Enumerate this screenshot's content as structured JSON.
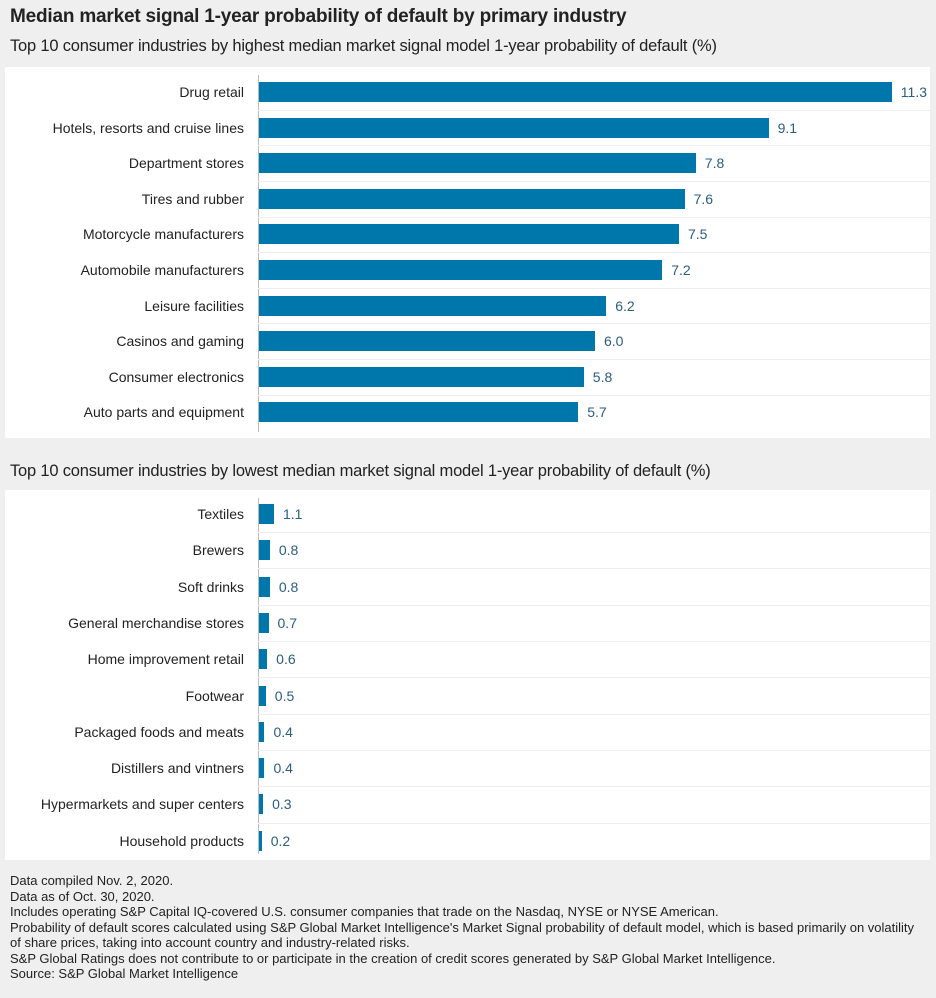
{
  "title": "Median market signal 1-year probability of default by primary industry",
  "chart_data": [
    {
      "type": "bar",
      "orientation": "horizontal",
      "title": "Top 10 consumer industries by highest median market signal model 1-year probability of default (%)",
      "categories": [
        "Drug retail",
        "Hotels, resorts and cruise lines",
        "Department stores",
        "Tires and rubber",
        "Motorcycle manufacturers",
        "Automobile manufacturers",
        "Leisure facilities",
        "Casinos and gaming",
        "Consumer electronics",
        "Auto parts and equipment"
      ],
      "values": [
        11.3,
        9.1,
        7.8,
        7.6,
        7.5,
        7.2,
        6.2,
        6.0,
        5.8,
        5.7
      ],
      "labels": [
        "11.3",
        "9.1",
        "7.8",
        "7.6",
        "7.5",
        "7.2",
        "6.2",
        "6.0",
        "5.8",
        "5.7"
      ],
      "color": "#0077aa"
    },
    {
      "type": "bar",
      "orientation": "horizontal",
      "title": "Top 10 consumer industries by lowest median market signal model 1-year probability of default (%)",
      "categories": [
        "Textiles",
        "Brewers",
        "Soft drinks",
        "General merchandise stores",
        "Home improvement retail",
        "Footwear",
        "Packaged foods and meats",
        "Distillers and vintners",
        "Hypermarkets and super centers",
        "Household products"
      ],
      "values": [
        1.1,
        0.8,
        0.8,
        0.7,
        0.6,
        0.5,
        0.4,
        0.4,
        0.3,
        0.2
      ],
      "labels": [
        "1.1",
        "0.8",
        "0.8",
        "0.7",
        "0.6",
        "0.5",
        "0.4",
        "0.4",
        "0.3",
        "0.2"
      ],
      "color": "#0077aa"
    }
  ],
  "footnotes": [
    "Data compiled Nov. 2, 2020.",
    "Data as of Oct. 30, 2020.",
    "Includes operating S&P Capital IQ-covered U.S. consumer companies that trade on the Nasdaq, NYSE or NYSE American.",
    "Probability of default scores calculated using S&P Global Market Intelligence's Market Signal probability of default model, which is based primarily on volatility of share prices, taking into account country and industry-related risks.",
    "S&P Global Ratings does not contribute to or participate in the creation of credit scores generated by S&P Global Market Intelligence.",
    "Source: S&P Global Market Intelligence"
  ]
}
